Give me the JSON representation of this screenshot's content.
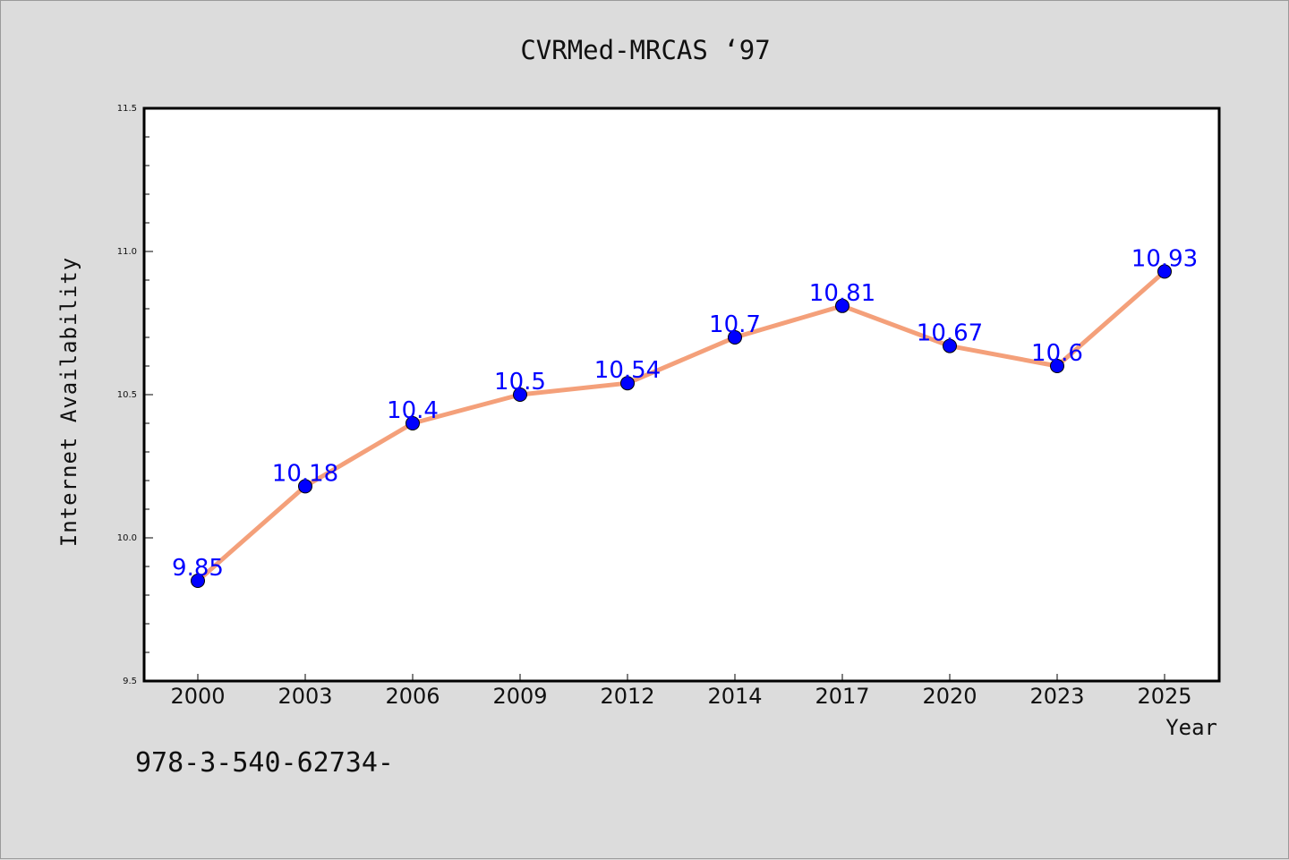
{
  "chart_data": {
    "type": "line",
    "title": "CVRMed-MRCAS ‘97",
    "xlabel": "Year",
    "ylabel": "Internet Availability",
    "categories": [
      "2000",
      "2003",
      "2006",
      "2009",
      "2012",
      "2014",
      "2017",
      "2020",
      "2023",
      "2025"
    ],
    "series": [
      {
        "values": [
          9.85,
          10.18,
          10.4,
          10.5,
          10.54,
          10.7,
          10.81,
          10.67,
          10.6,
          10.93
        ],
        "line_color": "#f4a07a",
        "marker_color": "#0000ff"
      }
    ],
    "data_labels": [
      "9.85",
      "10.18",
      "10.4",
      "10.5",
      "10.54",
      "10.7",
      "10.81",
      "10.67",
      "10.6",
      "10.93"
    ],
    "ylim": [
      9.5,
      11.5
    ],
    "yticks": [
      "9.5",
      "10.0",
      "10.5",
      "11.0",
      "11.5"
    ],
    "grid": false,
    "legend": "none"
  },
  "footer": {
    "text": "978-3-540-62734-"
  }
}
